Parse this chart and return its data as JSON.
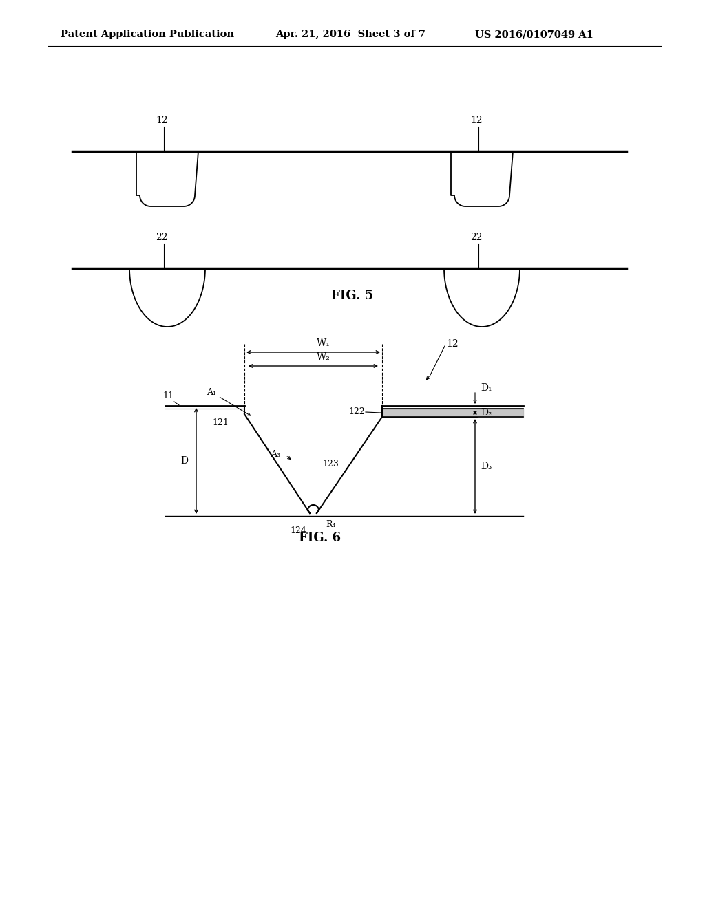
{
  "bg_color": "#ffffff",
  "line_color": "#000000",
  "gray_color": "#b0b0b0",
  "header_left": "Patent Application Publication",
  "header_center": "Apr. 21, 2016  Sheet 3 of 7",
  "header_right": "US 2016/0107049 A1",
  "fig5_label": "FIG. 5",
  "fig6_label": "FIG. 6",
  "fig5_groove1_label": "12",
  "fig5_groove2_label": "22",
  "fig6_labels": {
    "W1": "W₁",
    "W2": "W₂",
    "A1": "A₁",
    "A3": "A₃",
    "D": "D",
    "D1": "D₁",
    "D2": "D₂",
    "D3": "D₃",
    "R4": "R₄",
    "ref11": "11",
    "ref121": "121",
    "ref122": "122",
    "ref123": "123",
    "ref124": "124",
    "ref12": "12"
  }
}
